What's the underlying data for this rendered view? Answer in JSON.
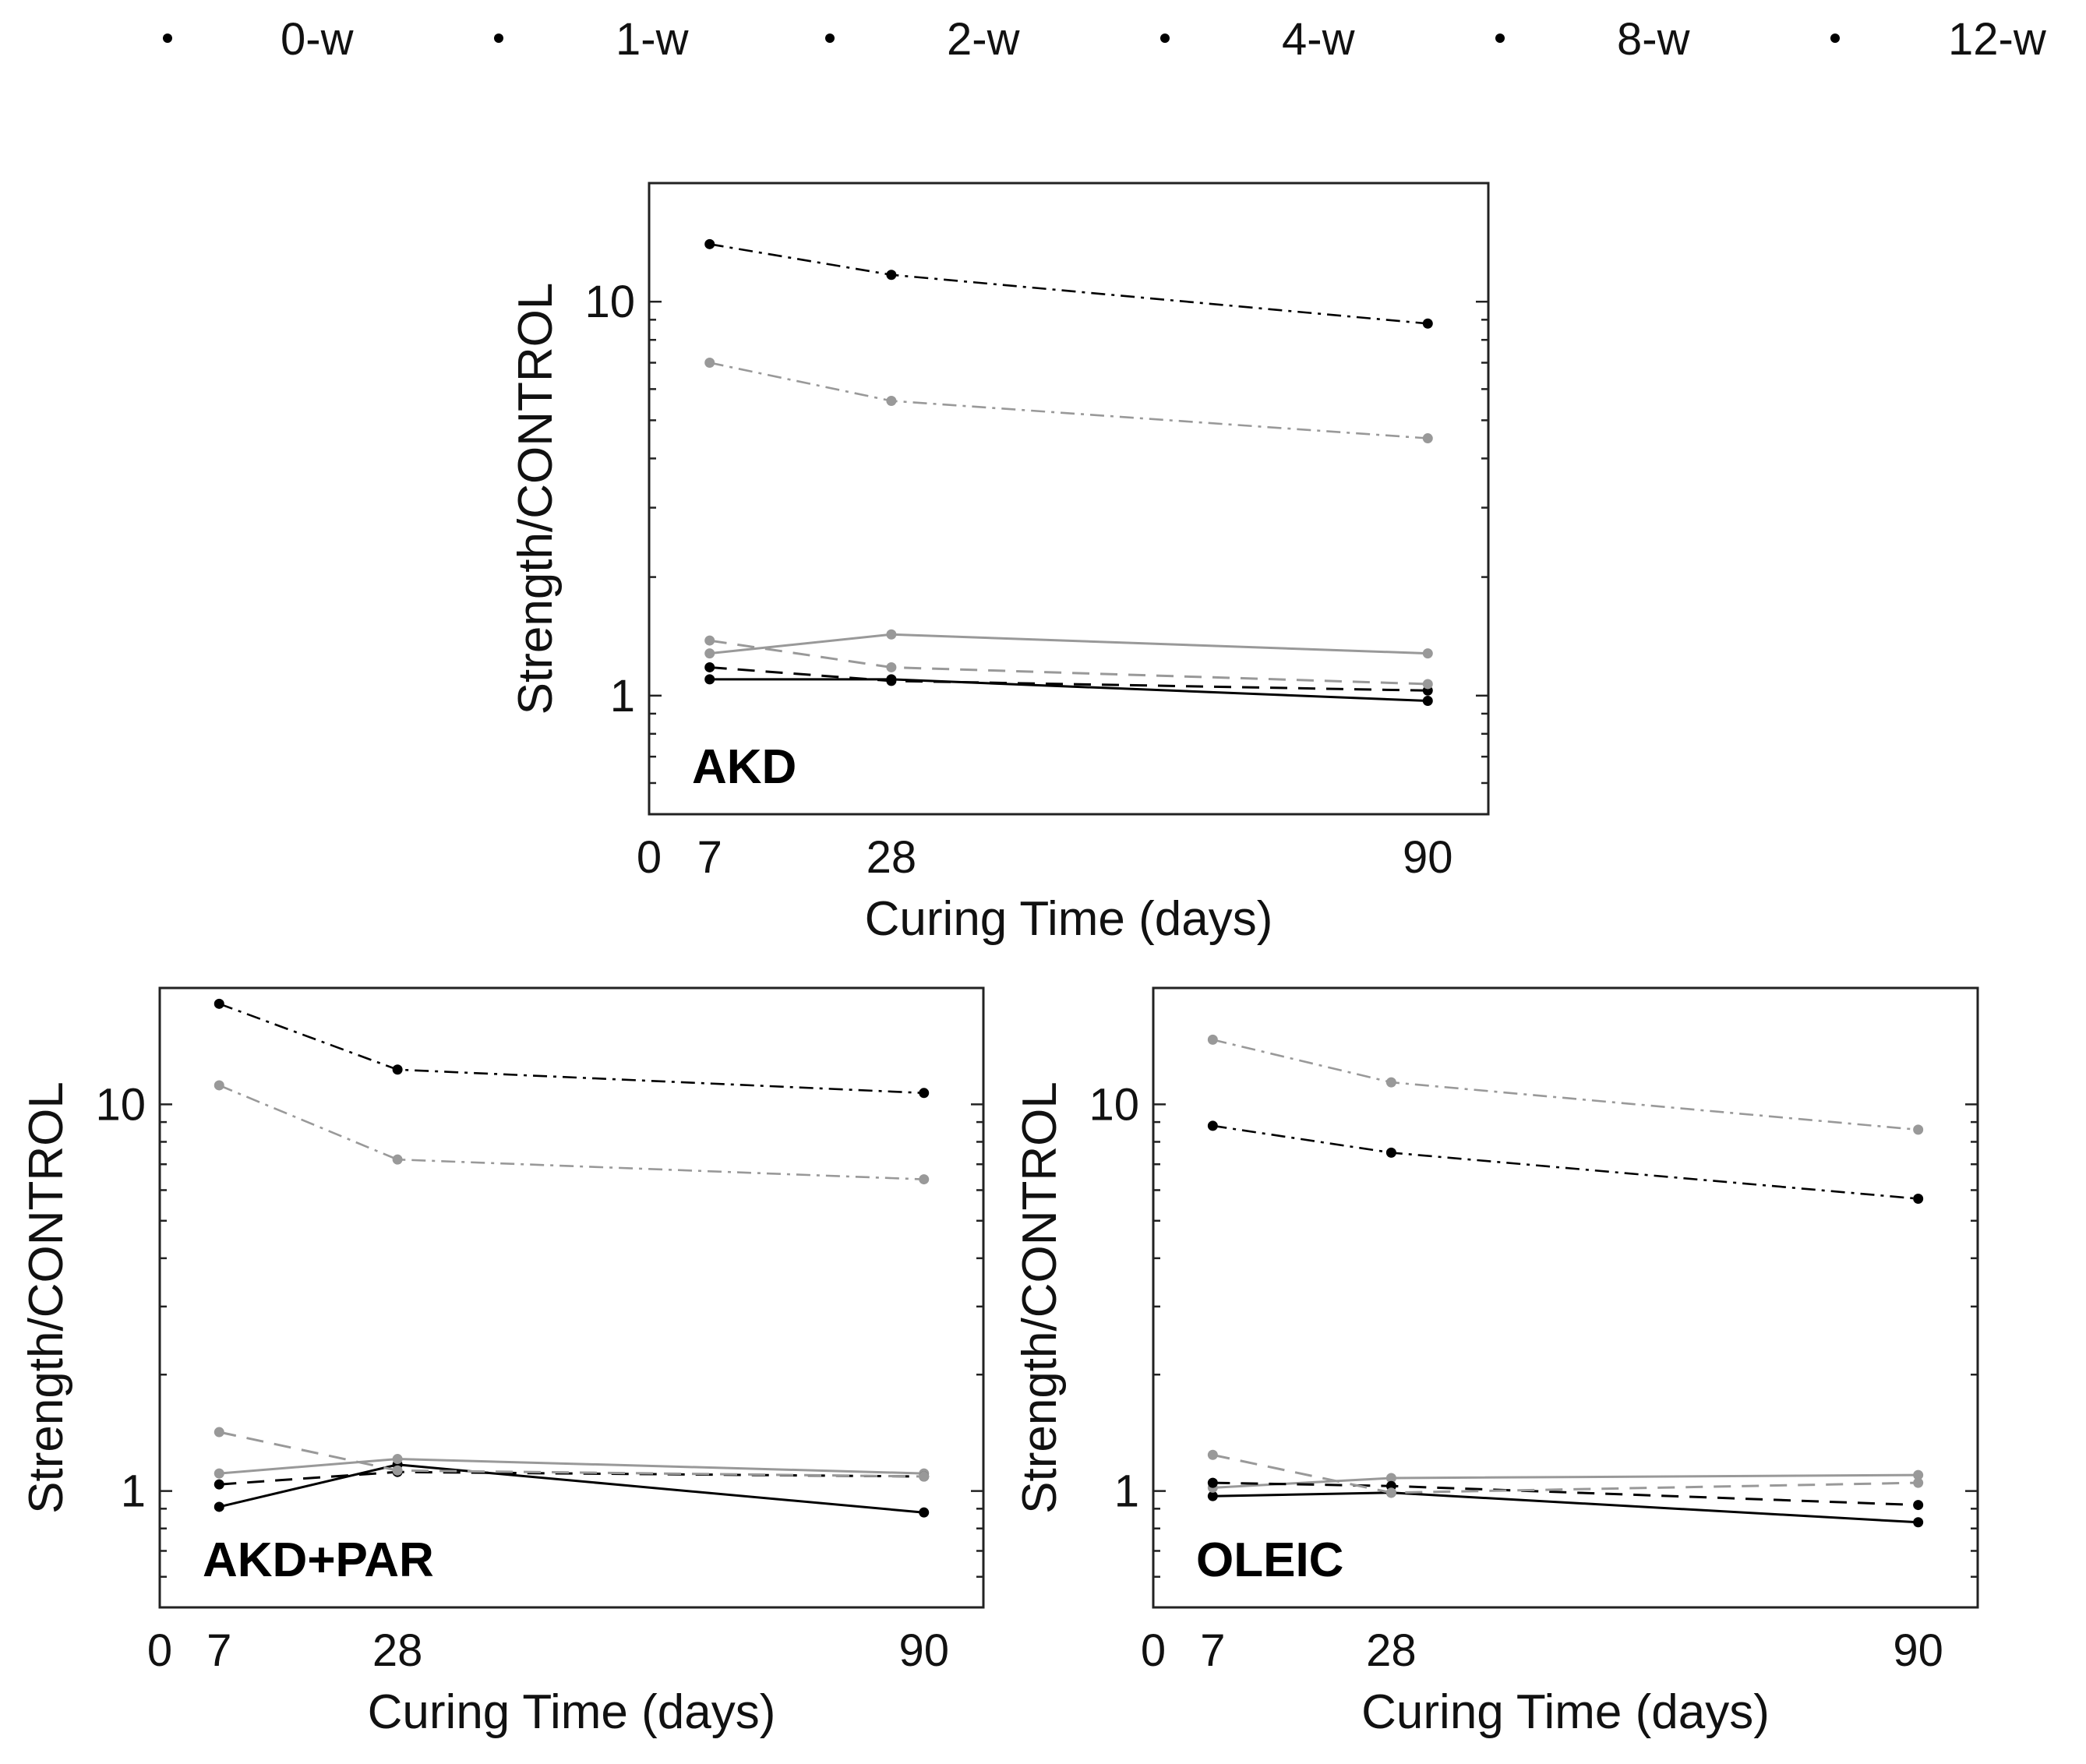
{
  "legend": [
    {
      "name": "0-w",
      "color": "#000000",
      "dash": "solid"
    },
    {
      "name": "1-w",
      "color": "#999999",
      "dash": "solid"
    },
    {
      "name": "2-w",
      "color": "#000000",
      "dash": "dashed"
    },
    {
      "name": "4-w",
      "color": "#999999",
      "dash": "dashed"
    },
    {
      "name": "8-w",
      "color": "#000000",
      "dash": "dashdot"
    },
    {
      "name": "12-w",
      "color": "#999999",
      "dash": "dashdot"
    }
  ],
  "chart_data": [
    {
      "type": "line",
      "panel_label": "AKD",
      "xlabel": "Curing Time (days)",
      "ylabel": "Strength/CONTROL",
      "x": [
        7,
        28,
        90
      ],
      "x_ticks": [
        "0",
        "7",
        "28",
        "90"
      ],
      "y_ticks": [
        "1",
        "10"
      ],
      "yscale": "log",
      "xlim": [
        0,
        97
      ],
      "ylim": [
        0.5,
        20
      ],
      "grid": false,
      "series": [
        {
          "name": "0-w",
          "values": [
            1.1,
            1.1,
            0.97
          ]
        },
        {
          "name": "1-w",
          "values": [
            1.28,
            1.43,
            1.28
          ]
        },
        {
          "name": "2-w",
          "values": [
            1.18,
            1.09,
            1.03
          ]
        },
        {
          "name": "4-w",
          "values": [
            1.38,
            1.18,
            1.07
          ]
        },
        {
          "name": "8-w",
          "values": [
            14.0,
            11.7,
            8.8
          ]
        },
        {
          "name": "12-w",
          "values": [
            7.0,
            5.6,
            4.5
          ]
        }
      ]
    },
    {
      "type": "line",
      "panel_label": "AKD+PAR",
      "xlabel": "Curing Time (days)",
      "ylabel": "Strength/CONTROL",
      "x": [
        7,
        28,
        90
      ],
      "x_ticks": [
        "0",
        "7",
        "28",
        "90"
      ],
      "y_ticks": [
        "1",
        "10"
      ],
      "yscale": "log",
      "xlim": [
        0,
        97
      ],
      "ylim": [
        0.5,
        20
      ],
      "grid": false,
      "series": [
        {
          "name": "0-w",
          "values": [
            0.91,
            1.17,
            0.88
          ]
        },
        {
          "name": "1-w",
          "values": [
            1.11,
            1.21,
            1.11
          ]
        },
        {
          "name": "2-w",
          "values": [
            1.04,
            1.12,
            1.09
          ]
        },
        {
          "name": "4-w",
          "values": [
            1.42,
            1.13,
            1.09
          ]
        },
        {
          "name": "8-w",
          "values": [
            18.2,
            12.3,
            10.7
          ]
        },
        {
          "name": "12-w",
          "values": [
            11.2,
            7.2,
            6.4
          ]
        }
      ]
    },
    {
      "type": "line",
      "panel_label": "OLEIC",
      "xlabel": "Curing Time (days)",
      "ylabel": "Strength/CONTROL",
      "x": [
        7,
        28,
        90
      ],
      "x_ticks": [
        "0",
        "7",
        "28",
        "90"
      ],
      "y_ticks": [
        "1",
        "10"
      ],
      "yscale": "log",
      "xlim": [
        0,
        97
      ],
      "ylim": [
        0.5,
        20
      ],
      "grid": false,
      "series": [
        {
          "name": "0-w",
          "values": [
            0.97,
            0.99,
            0.83
          ]
        },
        {
          "name": "1-w",
          "values": [
            1.02,
            1.08,
            1.1
          ]
        },
        {
          "name": "2-w",
          "values": [
            1.05,
            1.03,
            0.92
          ]
        },
        {
          "name": "4-w",
          "values": [
            1.24,
            0.99,
            1.05
          ]
        },
        {
          "name": "8-w",
          "values": [
            8.8,
            7.5,
            5.7
          ]
        },
        {
          "name": "12-w",
          "values": [
            14.7,
            11.4,
            8.6
          ]
        }
      ]
    }
  ]
}
